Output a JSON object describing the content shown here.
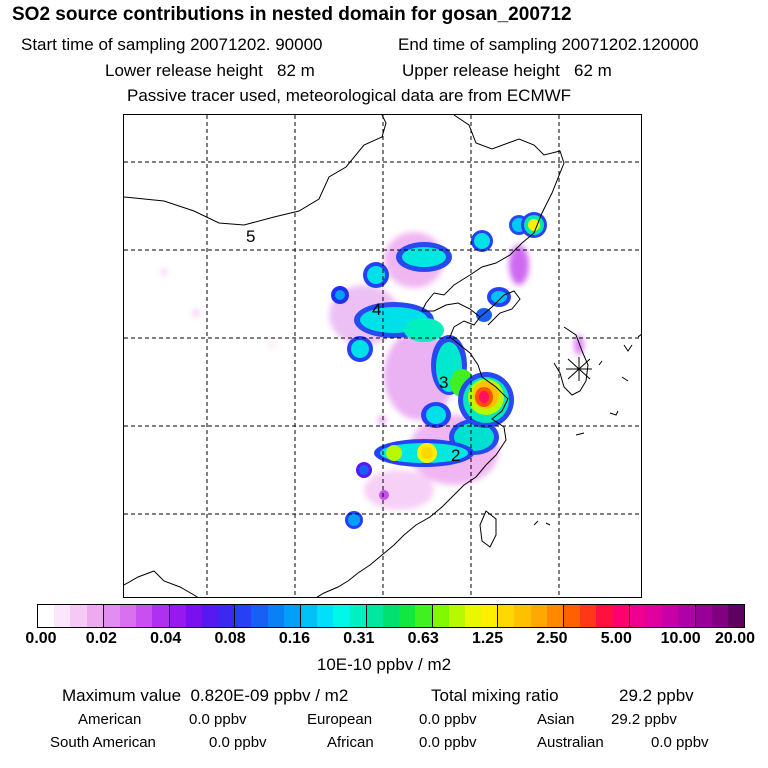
{
  "header": {
    "title": "SO2 source contributions in nested domain for gosan_200712",
    "start_time": "Start time of sampling 20071202. 90000",
    "end_time": "End time of sampling 20071202.120000",
    "lower_height": "Lower release height   82 m",
    "upper_height": "Upper release height   62 m",
    "tracer_note": "Passive tracer used, meteorological data are from ECMWF"
  },
  "map": {
    "source_labels": [
      "5",
      "4",
      "3",
      "2"
    ],
    "receptor_marker": "gosan-station-asterisk"
  },
  "colorbar": {
    "tick_labels": [
      "0.00",
      "0.02",
      "0.04",
      "0.08",
      "0.16",
      "0.31",
      "0.63",
      "1.25",
      "2.50",
      "5.00",
      "10.00",
      "20.00"
    ],
    "colors": [
      "#ffffff",
      "#fbe6fb",
      "#f5c8f5",
      "#eeaaf0",
      "#e28ef0",
      "#d870f0",
      "#c850f0",
      "#b030f2",
      "#9818f0",
      "#7a10f0",
      "#5818f0",
      "#3c28f0",
      "#2840f5",
      "#1860f5",
      "#0a80f5",
      "#00a0f8",
      "#00c0f8",
      "#00e0f8",
      "#00f8e8",
      "#00f0c0",
      "#00e8a0",
      "#00e070",
      "#10e840",
      "#40f020",
      "#80f800",
      "#b8f800",
      "#e8f800",
      "#fff000",
      "#ffd800",
      "#ffc000",
      "#ffa800",
      "#ff8800",
      "#ff6000",
      "#ff3818",
      "#ff1040",
      "#ff0070",
      "#f00090",
      "#e000a0",
      "#c800a8",
      "#b000a8",
      "#980098",
      "#800080",
      "#600060"
    ],
    "units": "10E-10 ppbv / m2"
  },
  "summary": {
    "max_label": "Maximum value  0.820E-09 ppbv / m2",
    "total_label": "Total mixing ratio",
    "total_value": "29.2 ppbv"
  },
  "contributions": [
    {
      "region": "American",
      "value": "0.0 ppbv"
    },
    {
      "region": "European",
      "value": "0.0 ppbv"
    },
    {
      "region": "Asian",
      "value": "29.2 ppbv"
    },
    {
      "region": "South American",
      "value": "0.0 ppbv"
    },
    {
      "region": "African",
      "value": "0.0 ppbv"
    },
    {
      "region": "Australian",
      "value": "0.0 ppbv"
    }
  ]
}
